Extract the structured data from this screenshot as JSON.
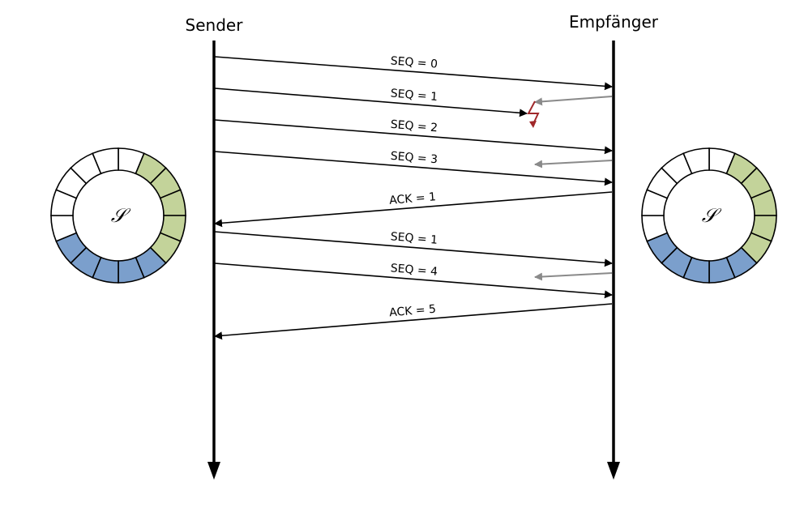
{
  "sender": {
    "label": "Sender"
  },
  "receiver": {
    "label": "Empfänger"
  },
  "colors": {
    "line": "#000000",
    "ack_gray": "#8a8a8a",
    "loss_red": "#a0282a",
    "ring_green": "#c3d39a",
    "ring_blue": "#7b9fcc",
    "ring_empty": "#ffffff"
  },
  "messages": [
    {
      "label": "SEQ = 0",
      "direction": "to-receiver",
      "lost": false
    },
    {
      "label": "SEQ = 1",
      "direction": "to-receiver",
      "lost": true
    },
    {
      "label": "SEQ = 2",
      "direction": "to-receiver",
      "lost": false
    },
    {
      "label": "SEQ = 3",
      "direction": "to-receiver",
      "lost": false
    },
    {
      "label": "ACK = 1",
      "direction": "to-sender",
      "lost": false
    },
    {
      "label": "SEQ = 1",
      "direction": "to-receiver",
      "lost": false
    },
    {
      "label": "SEQ = 4",
      "direction": "to-receiver",
      "lost": false
    },
    {
      "label": "ACK = 5",
      "direction": "to-sender",
      "lost": false
    }
  ],
  "rings": [
    {
      "side": "sender",
      "label": "𝒮",
      "segments": [
        "empty",
        "green",
        "green",
        "green",
        "green",
        "green",
        "blue",
        "blue",
        "blue",
        "blue",
        "blue",
        "empty",
        "empty",
        "empty",
        "empty",
        "empty"
      ]
    },
    {
      "side": "receiver",
      "label": "𝒮",
      "segments": [
        "empty",
        "green",
        "green",
        "green",
        "green",
        "green",
        "blue",
        "blue",
        "blue",
        "blue",
        "blue",
        "empty",
        "empty",
        "empty",
        "empty",
        "empty"
      ]
    }
  ]
}
